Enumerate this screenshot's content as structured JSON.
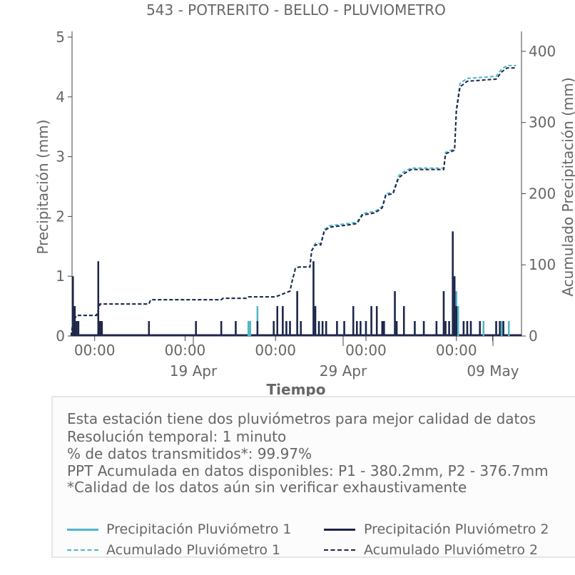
{
  "chart_data": {
    "type": "bar",
    "title": "543 - POTRERITO - BELLO - PLUVIOMETRO",
    "xlabel": "Tiempo",
    "ylabel": "Precipitación (mm)",
    "y2label": "Acumulado Precipitación (mm)",
    "ylim": [
      0,
      5
    ],
    "y2lim": [
      0,
      420
    ],
    "y_ticks": [
      0,
      1,
      2,
      3,
      4,
      5
    ],
    "y2_ticks": [
      0,
      100,
      200,
      300,
      400
    ],
    "x_range_days": [
      "Apr 12 19:00",
      "May 11 12:00"
    ],
    "x_ticks_major": [
      {
        "label": "00:00",
        "day": 14.0
      },
      {
        "label": "00:00",
        "day": 19.0
      },
      {
        "label": "00:00",
        "day": 24.0
      },
      {
        "label": "00:00",
        "day": 29.0
      },
      {
        "label": "00:00",
        "day": 34.0
      },
      {
        "label": "",
        "day": 36.0
      }
    ],
    "x_date_labels": [
      {
        "label": "19 Apr",
        "day": 19.0
      },
      {
        "label": "29 Apr",
        "day": 29.0
      },
      {
        "label": "09 May",
        "day": 39.0
      }
    ],
    "colors": {
      "p1": "#4fb6c6",
      "p2": "#1f2447",
      "text": "#666666",
      "axis": "#444444"
    },
    "series": [
      {
        "name": "Precipitación Pluviómetro 1",
        "style": "solid",
        "points": [
          [
            12.8,
            1.0
          ],
          [
            12.9,
            0.5
          ],
          [
            13.0,
            0.25
          ],
          [
            13.1,
            0.25
          ],
          [
            14.2,
            1.25
          ],
          [
            14.3,
            0.25
          ],
          [
            14.4,
            0.25
          ],
          [
            17.0,
            0.25
          ],
          [
            19.6,
            0.25
          ],
          [
            21.0,
            0.25
          ],
          [
            21.8,
            0.25
          ],
          [
            22.5,
            0.25
          ],
          [
            22.6,
            0.25
          ],
          [
            23.0,
            0.5
          ],
          [
            23.9,
            0.25
          ],
          [
            24.1,
            0.5
          ],
          [
            24.4,
            0.5
          ],
          [
            24.6,
            0.25
          ],
          [
            24.8,
            0.25
          ],
          [
            25.2,
            0.75
          ],
          [
            25.4,
            0.25
          ],
          [
            26.1,
            1.25
          ],
          [
            26.2,
            0.5
          ],
          [
            26.4,
            0.25
          ],
          [
            26.6,
            0.25
          ],
          [
            26.8,
            0.25
          ],
          [
            27.4,
            0.25
          ],
          [
            27.8,
            0.25
          ],
          [
            28.3,
            0.5
          ],
          [
            28.5,
            0.25
          ],
          [
            28.7,
            0.25
          ],
          [
            29.0,
            0.25
          ],
          [
            29.3,
            0.5
          ],
          [
            29.6,
            0.5
          ],
          [
            29.9,
            0.25
          ],
          [
            30.0,
            0.25
          ],
          [
            30.6,
            0.75
          ],
          [
            30.7,
            0.25
          ],
          [
            31.1,
            0.5
          ],
          [
            31.7,
            0.25
          ],
          [
            32.2,
            0.25
          ],
          [
            32.9,
            0.25
          ],
          [
            33.3,
            0.75
          ],
          [
            33.4,
            0.25
          ],
          [
            33.6,
            0.25
          ],
          [
            33.8,
            1.75
          ],
          [
            33.9,
            1.0
          ],
          [
            34.0,
            0.75
          ],
          [
            34.1,
            0.5
          ],
          [
            34.4,
            0.25
          ],
          [
            34.6,
            0.25
          ],
          [
            34.8,
            0.25
          ],
          [
            35.3,
            0.25
          ],
          [
            35.5,
            0.25
          ],
          [
            36.2,
            0.25
          ],
          [
            36.5,
            0.25
          ],
          [
            36.9,
            0.25
          ]
        ]
      },
      {
        "name": "Precipitación Pluviómetro 2",
        "style": "solid",
        "points": [
          [
            12.8,
            1.0
          ],
          [
            12.9,
            0.5
          ],
          [
            13.0,
            0.25
          ],
          [
            13.1,
            0.25
          ],
          [
            14.2,
            1.25
          ],
          [
            14.3,
            0.25
          ],
          [
            14.4,
            0.25
          ],
          [
            17.0,
            0.25
          ],
          [
            19.6,
            0.25
          ],
          [
            21.0,
            0.25
          ],
          [
            21.8,
            0.25
          ],
          [
            23.0,
            0.25
          ],
          [
            23.9,
            0.25
          ],
          [
            24.1,
            0.5
          ],
          [
            24.4,
            0.5
          ],
          [
            24.6,
            0.25
          ],
          [
            24.8,
            0.25
          ],
          [
            25.2,
            0.75
          ],
          [
            25.4,
            0.25
          ],
          [
            26.1,
            1.25
          ],
          [
            26.2,
            0.5
          ],
          [
            26.4,
            0.25
          ],
          [
            26.6,
            0.25
          ],
          [
            26.8,
            0.25
          ],
          [
            27.4,
            0.25
          ],
          [
            27.8,
            0.25
          ],
          [
            28.3,
            0.5
          ],
          [
            28.5,
            0.25
          ],
          [
            28.7,
            0.25
          ],
          [
            29.0,
            0.25
          ],
          [
            29.3,
            0.5
          ],
          [
            29.6,
            0.5
          ],
          [
            29.9,
            0.25
          ],
          [
            30.0,
            0.25
          ],
          [
            30.6,
            0.75
          ],
          [
            30.7,
            0.25
          ],
          [
            31.1,
            0.5
          ],
          [
            31.7,
            0.25
          ],
          [
            32.2,
            0.25
          ],
          [
            32.9,
            0.25
          ],
          [
            33.3,
            0.75
          ],
          [
            33.4,
            0.25
          ],
          [
            33.6,
            0.25
          ],
          [
            33.8,
            1.75
          ],
          [
            33.9,
            1.0
          ],
          [
            34.0,
            0.5
          ],
          [
            34.4,
            0.25
          ],
          [
            34.6,
            0.25
          ],
          [
            34.8,
            0.25
          ],
          [
            35.3,
            0.25
          ],
          [
            36.2,
            0.25
          ],
          [
            36.4,
            0.25
          ],
          [
            36.6,
            0.25
          ]
        ]
      },
      {
        "name": "Acumulado Pluviómetro 1",
        "style": "dashed",
        "axis": "right",
        "points": [
          [
            12.7,
            0
          ],
          [
            12.8,
            20
          ],
          [
            13.0,
            29
          ],
          [
            14.1,
            29
          ],
          [
            14.3,
            45
          ],
          [
            17.0,
            45
          ],
          [
            17.1,
            51
          ],
          [
            21.0,
            51
          ],
          [
            21.1,
            53
          ],
          [
            22.4,
            53
          ],
          [
            22.5,
            55
          ],
          [
            24.0,
            55
          ],
          [
            24.3,
            58
          ],
          [
            24.8,
            63
          ],
          [
            24.9,
            75
          ],
          [
            25.1,
            95
          ],
          [
            25.3,
            97
          ],
          [
            25.9,
            97
          ],
          [
            26.0,
            120
          ],
          [
            26.2,
            130
          ],
          [
            26.5,
            130
          ],
          [
            26.7,
            150
          ],
          [
            27.0,
            155
          ],
          [
            28.0,
            158
          ],
          [
            28.5,
            160
          ],
          [
            28.8,
            172
          ],
          [
            29.5,
            175
          ],
          [
            29.9,
            182
          ],
          [
            30.1,
            200
          ],
          [
            30.5,
            202
          ],
          [
            30.8,
            225
          ],
          [
            31.1,
            231
          ],
          [
            31.5,
            236
          ],
          [
            33.3,
            236
          ],
          [
            33.4,
            258
          ],
          [
            33.9,
            263
          ],
          [
            34.0,
            320
          ],
          [
            34.2,
            355
          ],
          [
            34.6,
            362
          ],
          [
            36.2,
            365
          ],
          [
            36.5,
            375
          ],
          [
            36.8,
            380
          ],
          [
            37.3,
            380
          ]
        ]
      },
      {
        "name": "Acumulado Pluviómetro 2",
        "style": "dashed",
        "axis": "right",
        "points": [
          [
            12.7,
            0
          ],
          [
            12.8,
            20
          ],
          [
            13.0,
            29
          ],
          [
            14.1,
            29
          ],
          [
            14.3,
            45
          ],
          [
            17.0,
            45
          ],
          [
            17.1,
            51
          ],
          [
            21.0,
            51
          ],
          [
            21.1,
            53
          ],
          [
            22.4,
            53
          ],
          [
            22.5,
            55
          ],
          [
            24.0,
            55
          ],
          [
            24.3,
            58
          ],
          [
            24.8,
            63
          ],
          [
            24.9,
            75
          ],
          [
            25.1,
            95
          ],
          [
            25.3,
            97
          ],
          [
            25.9,
            97
          ],
          [
            26.0,
            120
          ],
          [
            26.2,
            128
          ],
          [
            26.5,
            128
          ],
          [
            26.7,
            148
          ],
          [
            27.0,
            153
          ],
          [
            28.0,
            156
          ],
          [
            28.5,
            158
          ],
          [
            28.8,
            170
          ],
          [
            29.5,
            173
          ],
          [
            29.9,
            180
          ],
          [
            30.1,
            198
          ],
          [
            30.5,
            200
          ],
          [
            30.8,
            222
          ],
          [
            31.1,
            228
          ],
          [
            31.5,
            234
          ],
          [
            33.3,
            234
          ],
          [
            33.4,
            256
          ],
          [
            33.9,
            261
          ],
          [
            34.0,
            316
          ],
          [
            34.2,
            350
          ],
          [
            34.6,
            358
          ],
          [
            36.2,
            361
          ],
          [
            36.5,
            371
          ],
          [
            36.8,
            376.7
          ],
          [
            37.3,
            376.7
          ]
        ]
      }
    ],
    "legend": "bottom"
  },
  "info": {
    "line1": "Esta estación tiene dos pluviómetros para mejor calidad de datos",
    "line2": "Resolución temporal: 1 minuto",
    "line3": "% de datos transmitidos*: 99.97%",
    "line4": "PPT Acumulada en datos disponibles: P1 - 380.2mm, P2 - 376.7mm",
    "line5": "*Calidad de los datos aún sin verificar exhaustivamente"
  },
  "legend": {
    "p1_label": "Precipitación Pluviómetro 1",
    "p2_label": "Precipitación Pluviómetro 2",
    "a1_label": "Acumulado Pluviómetro 1",
    "a2_label": "Acumulado Pluviómetro 2"
  }
}
